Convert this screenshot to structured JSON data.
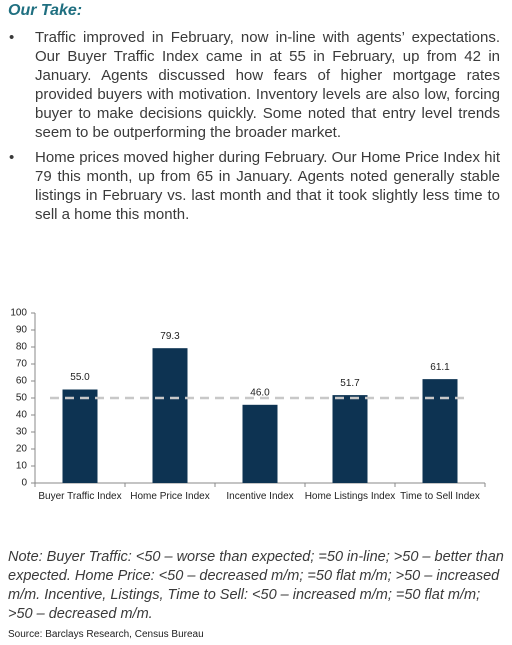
{
  "header": {
    "title": "Our Take:"
  },
  "bullets": [
    "Traffic improved in February, now in-line with agents’ expectations. Our Buyer Traffic Index came in at 55 in February, up from 42 in January. Agents discussed how fears of higher mortgage rates provided buyers with motivation. Inventory levels are also low, forcing buyer to make decisions quickly. Some noted that entry level trends seem to be outperforming the broader market.",
    "Home prices moved higher during February. Our Home Price Index hit 79 this month, up from 65 in January. Agents noted generally stable listings in February vs. last month and that it took slightly less time to sell a home this month."
  ],
  "chart_data": {
    "type": "bar",
    "categories": [
      "Buyer Traffic Index",
      "Home Price Index",
      "Incentive Index",
      "Home Listings Index",
      "Time to Sell Index"
    ],
    "values": [
      55.0,
      79.3,
      46.0,
      51.7,
      61.1
    ],
    "value_labels": [
      "55.0",
      "79.3",
      "46.0",
      "51.7",
      "61.1"
    ],
    "color": "#0d3352",
    "ylim": [
      0,
      100
    ],
    "yticks": [
      0,
      10,
      20,
      30,
      40,
      50,
      60,
      70,
      80,
      90,
      100
    ],
    "reference_line": 50,
    "reference_line_color": "#c8c8c8",
    "grid": false
  },
  "note": "Note: Buyer Traffic: <50 – worse than expected; =50 in-line; >50 – better than expected. Home Price: <50 – decreased m/m; =50 flat m/m; >50 – increased m/m. Incentive, Listings, Time to Sell: <50 – increased m/m; =50 flat m/m; >50 – decreased m/m.",
  "source": "Source: Barclays Research, Census Bureau"
}
